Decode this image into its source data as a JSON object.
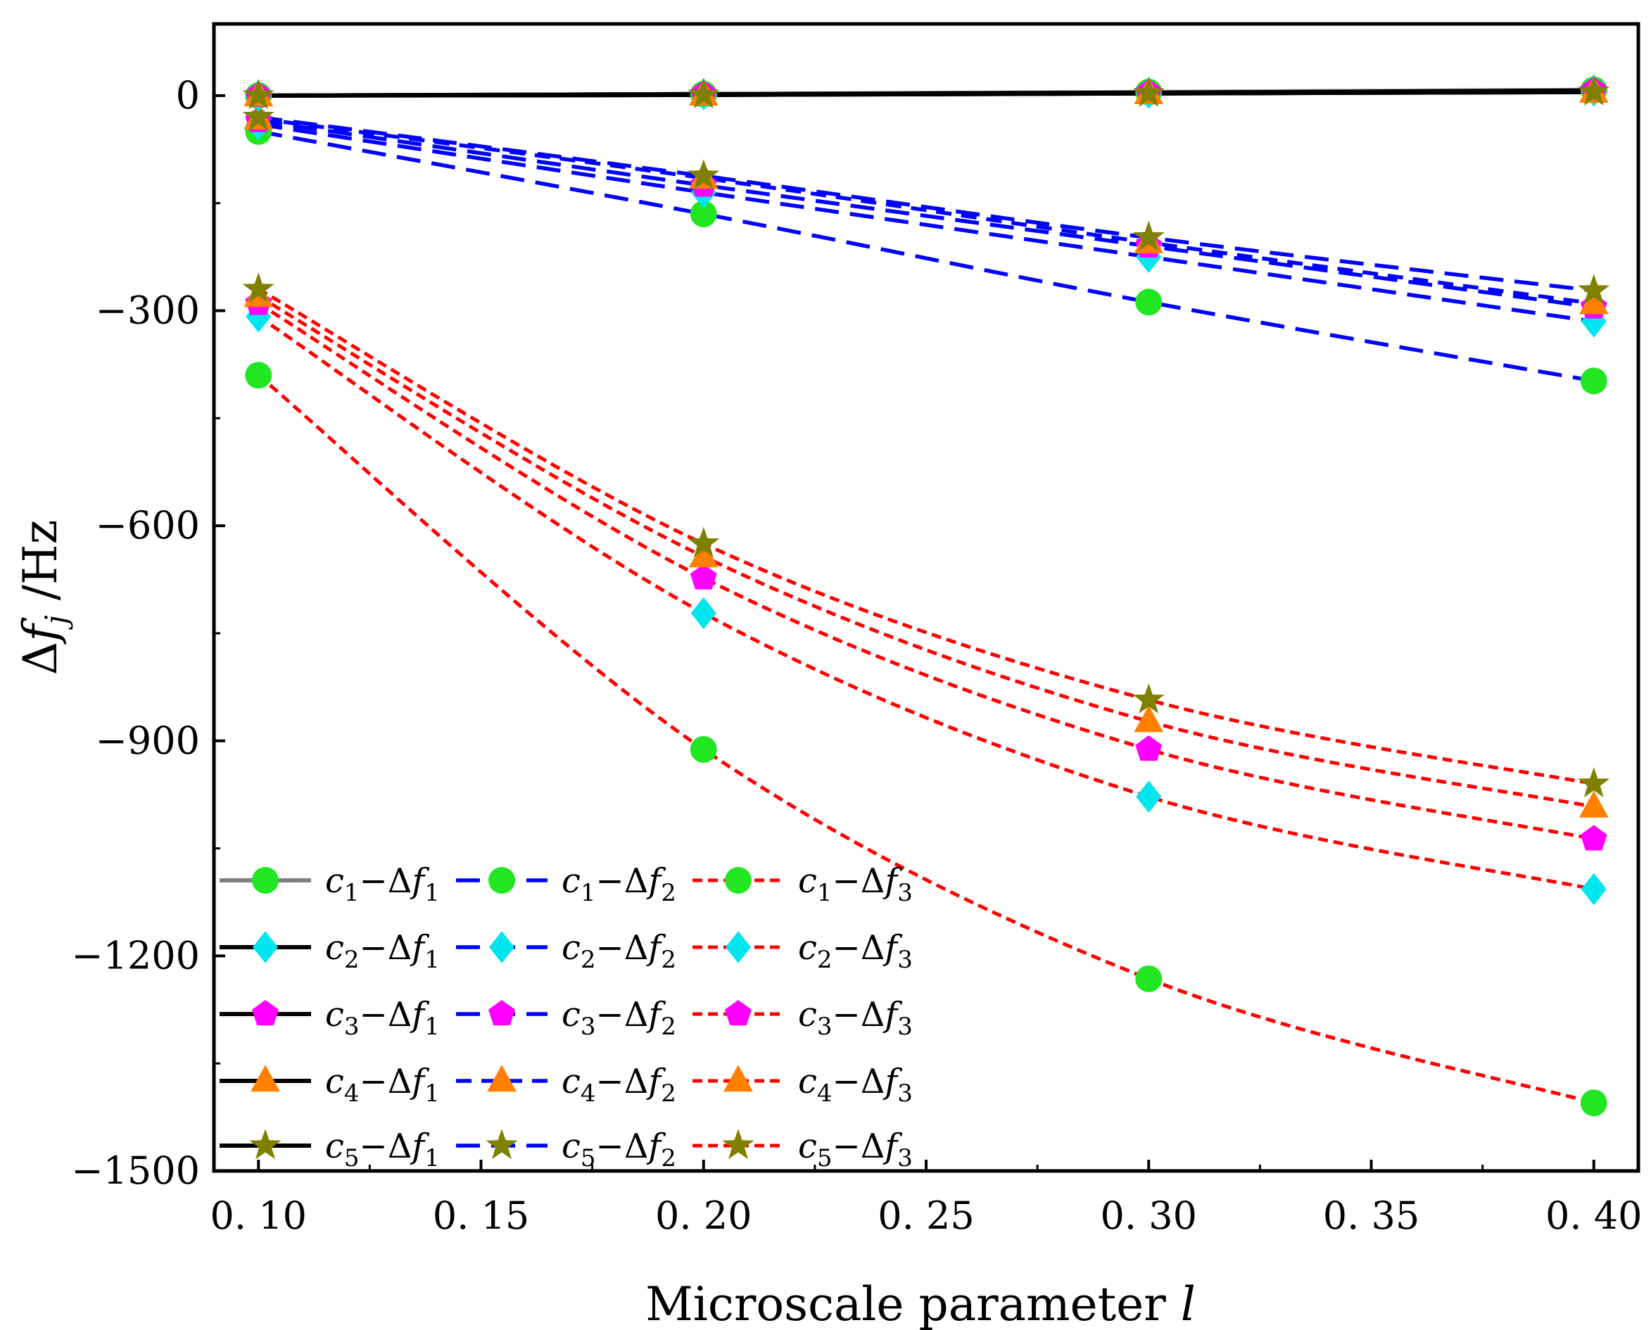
{
  "chart_data": {
    "type": "line",
    "xlabel": "Microscale parameter  l",
    "ylabel": "Δf_j /Hz",
    "x": [
      0.1,
      0.2,
      0.3,
      0.4
    ],
    "xticks": [
      "0. 10",
      "0. 15",
      "0. 20",
      "0. 25",
      "0. 30",
      "0. 35",
      "0. 40"
    ],
    "xtick_values": [
      0.1,
      0.15,
      0.2,
      0.25,
      0.3,
      0.35,
      0.4
    ],
    "yticks": [
      "0",
      "−300",
      "−600",
      "−900",
      "−1200",
      "−1500"
    ],
    "ytick_values": [
      0,
      -300,
      -600,
      -900,
      -1200,
      -1500
    ],
    "xlim": [
      0.09,
      0.41
    ],
    "ylim": [
      -1500,
      100
    ],
    "legend_position": "bottom-left",
    "markers": {
      "c1": {
        "shape": "circle",
        "color": "#22e622"
      },
      "c2": {
        "shape": "diamond",
        "color": "#00e5ee"
      },
      "c3": {
        "shape": "pentagon",
        "color": "#ff00ff"
      },
      "c4": {
        "shape": "triangle",
        "color": "#ff8000"
      },
      "c5": {
        "shape": "star",
        "color": "#808000"
      }
    },
    "series": [
      {
        "name": "c1−Δf1",
        "case": "c1",
        "group": "f1",
        "color": "#808080",
        "dash": "solid",
        "values": [
          0,
          2,
          5,
          8
        ]
      },
      {
        "name": "c2−Δf1",
        "case": "c2",
        "group": "f1",
        "color": "#000000",
        "dash": "solid",
        "values": [
          0,
          2,
          4,
          7
        ]
      },
      {
        "name": "c3−Δf1",
        "case": "c3",
        "group": "f1",
        "color": "#000000",
        "dash": "solid",
        "values": [
          0,
          2,
          4,
          7
        ]
      },
      {
        "name": "c4−Δf1",
        "case": "c4",
        "group": "f1",
        "color": "#000000",
        "dash": "solid",
        "values": [
          0,
          1,
          3,
          5
        ]
      },
      {
        "name": "c5−Δf1",
        "case": "c5",
        "group": "f1",
        "color": "#000000",
        "dash": "solid",
        "values": [
          0,
          1,
          3,
          5
        ]
      },
      {
        "name": "c1−Δf2",
        "case": "c1",
        "group": "f2",
        "color": "#0000ff",
        "dash": "long",
        "values": [
          -50,
          -165,
          -288,
          -398
        ]
      },
      {
        "name": "c2−Δf2",
        "case": "c2",
        "group": "f2",
        "color": "#0000ff",
        "dash": "long",
        "values": [
          -40,
          -135,
          -225,
          -315
        ]
      },
      {
        "name": "c3−Δf2",
        "case": "c3",
        "group": "f2",
        "color": "#0000ff",
        "dash": "long",
        "values": [
          -35,
          -125,
          -210,
          -295
        ]
      },
      {
        "name": "c4−Δf2",
        "case": "c4",
        "group": "f2",
        "color": "#0000ff",
        "dash": "medium",
        "values": [
          -32,
          -115,
          -205,
          -290
        ]
      },
      {
        "name": "c5−Δf2",
        "case": "c5",
        "group": "f2",
        "color": "#0000ff",
        "dash": "long",
        "values": [
          -30,
          -112,
          -198,
          -272
        ]
      },
      {
        "name": "c1−Δf3",
        "case": "c1",
        "group": "f3",
        "color": "#ff0000",
        "dash": "short",
        "values": [
          -390,
          -912,
          -1232,
          -1405
        ]
      },
      {
        "name": "c2−Δf3",
        "case": "c2",
        "group": "f3",
        "color": "#ff0000",
        "dash": "short",
        "values": [
          -308,
          -722,
          -978,
          -1107
        ]
      },
      {
        "name": "c3−Δf3",
        "case": "c3",
        "group": "f3",
        "color": "#ff0000",
        "dash": "short",
        "values": [
          -290,
          -673,
          -912,
          -1037
        ]
      },
      {
        "name": "c4−Δf3",
        "case": "c4",
        "group": "f3",
        "color": "#ff0000",
        "dash": "short",
        "values": [
          -280,
          -643,
          -873,
          -992
        ]
      },
      {
        "name": "c5−Δf3",
        "case": "c5",
        "group": "f3",
        "color": "#ff0000",
        "dash": "short",
        "values": [
          -270,
          -625,
          -843,
          -960
        ]
      }
    ]
  }
}
